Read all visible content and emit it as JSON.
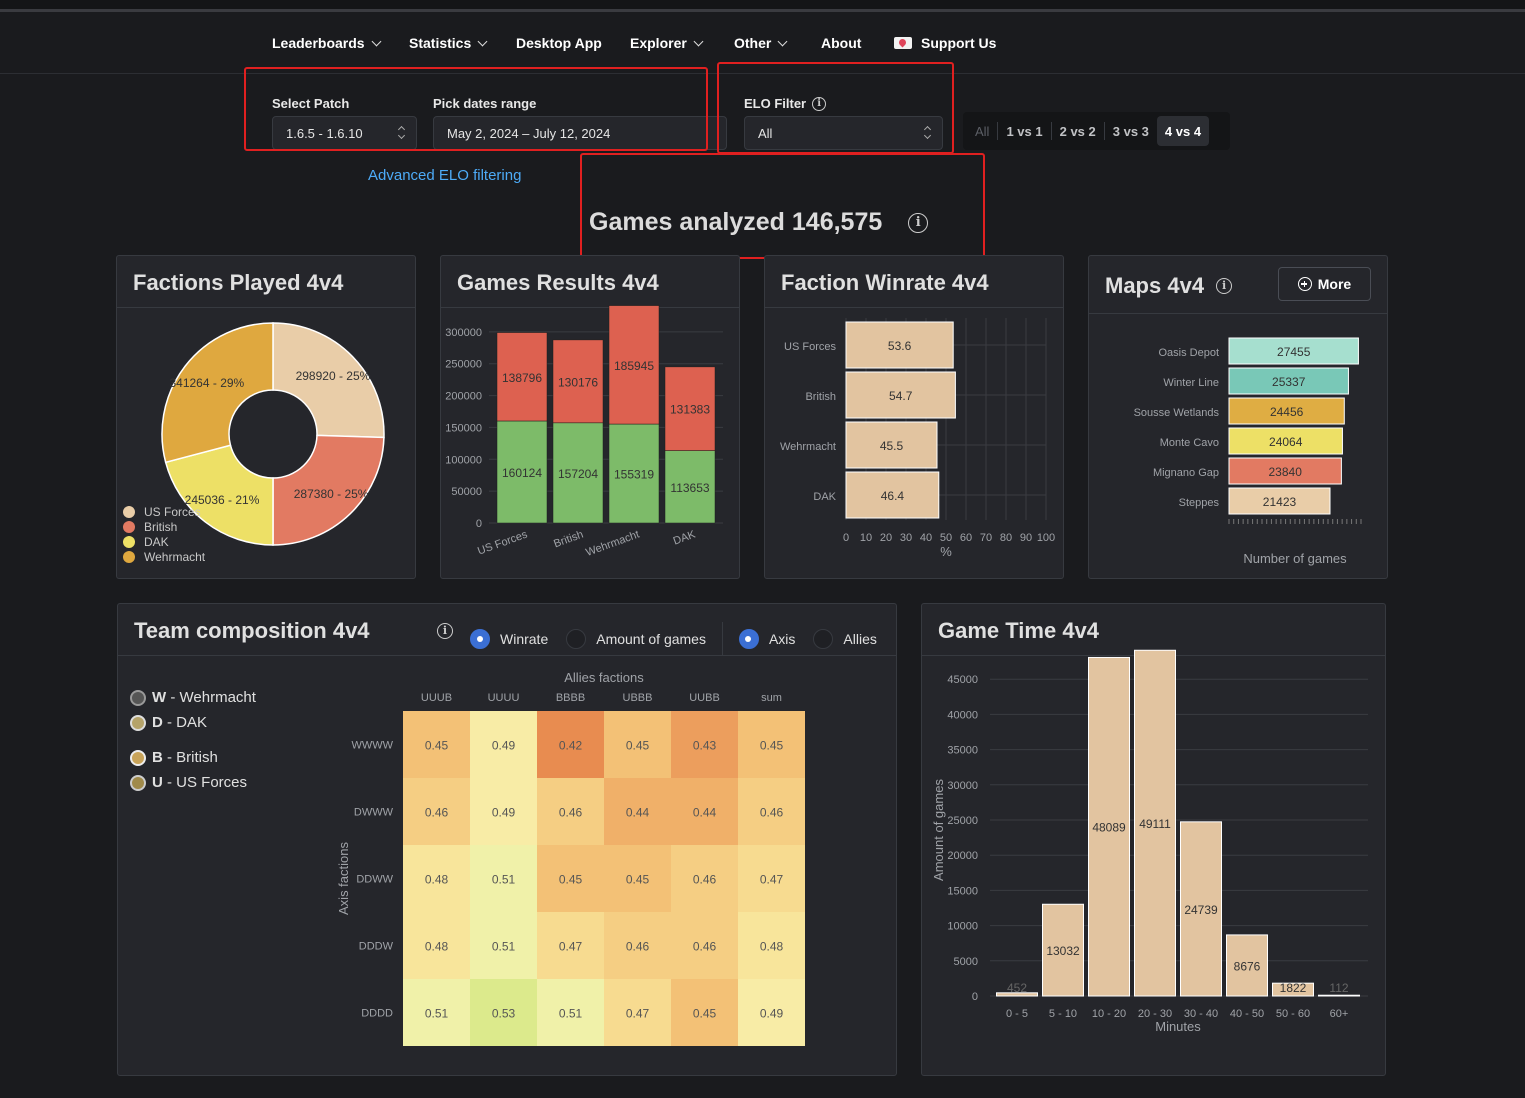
{
  "nav": {
    "items": [
      {
        "label": "Leaderboards",
        "dropdown": true
      },
      {
        "label": "Statistics",
        "dropdown": true
      },
      {
        "label": "Desktop App",
        "dropdown": false
      },
      {
        "label": "Explorer",
        "dropdown": true
      },
      {
        "label": "Other",
        "dropdown": true
      },
      {
        "label": "About",
        "dropdown": false
      }
    ],
    "support_label": "Support Us"
  },
  "filters": {
    "patch_label": "Select Patch",
    "patch_value": "1.6.5 - 1.6.10",
    "dates_label": "Pick dates range",
    "dates_value": "May 2, 2024 – July 12, 2024",
    "elo_label": "ELO Filter",
    "elo_value": "All",
    "advanced_link": "Advanced ELO filtering",
    "modes": [
      "All",
      "1 vs 1",
      "2 vs 2",
      "3 vs 3",
      "4 vs 4"
    ],
    "active_mode": "4 vs 4"
  },
  "games_analyzed": "Games analyzed 146,575",
  "cards": {
    "factions_played": "Factions Played 4v4",
    "games_results": "Games Results 4v4",
    "faction_winrate": "Faction Winrate 4v4",
    "maps": "Maps 4v4",
    "maps_more": "More",
    "team_comp": "Team composition 4v4",
    "game_time": "Game Time 4v4"
  },
  "team_comp_controls": {
    "winrate": "Winrate",
    "amount": "Amount of games",
    "axis": "Axis",
    "allies": "Allies"
  },
  "faction_legend": [
    {
      "code": "W",
      "name": " - Wehrmacht"
    },
    {
      "code": "D",
      "name": " - DAK"
    },
    {
      "code": "B",
      "name": " - British"
    },
    {
      "code": "U",
      "name": " - US Forces"
    }
  ],
  "colors": {
    "accent": "#3b6fd4",
    "win": "#7dbb69",
    "loss": "#dd6150",
    "bar": "#e2c4a0",
    "link": "#4dabf7"
  },
  "chart_data": [
    {
      "type": "pie",
      "title": "Factions Played 4v4",
      "labels": [
        "US Forces",
        "British",
        "DAK",
        "Wehrmacht"
      ],
      "values": [
        298920,
        287380,
        245036,
        341264
      ],
      "percent_labels": [
        "298920 - 25%",
        "287380 - 25%",
        "245036 - 21%",
        "341264 - 29%"
      ],
      "colors": [
        "#e9cda8",
        "#e27a62",
        "#ede066",
        "#dfa83f"
      ],
      "legend": "bottom-left"
    },
    {
      "type": "bar",
      "title": "Games Results 4v4",
      "categories": [
        "US Forces",
        "British",
        "Wehrmacht",
        "DAK"
      ],
      "series": [
        {
          "name": "wins",
          "values": [
            160124,
            157204,
            155319,
            113653
          ],
          "color": "#7dbb69"
        },
        {
          "name": "losses",
          "values": [
            138796,
            130176,
            185945,
            131383
          ],
          "color": "#dd6150"
        }
      ],
      "stacked": true,
      "yticks": [
        "0",
        "50000",
        "100000",
        "150000",
        "200000",
        "250000",
        "300000"
      ],
      "ylim": [
        0,
        350000
      ]
    },
    {
      "type": "bar",
      "orientation": "horizontal",
      "title": "Faction Winrate 4v4",
      "categories": [
        "US Forces",
        "British",
        "Wehrmacht",
        "DAK"
      ],
      "values": [
        53.6,
        54.7,
        45.5,
        46.4
      ],
      "xlabel": "%",
      "xticks": [
        "0",
        "10",
        "20",
        "30",
        "40",
        "50",
        "60",
        "70",
        "80",
        "90",
        "100"
      ],
      "xlim": [
        0,
        100
      ]
    },
    {
      "type": "bar",
      "orientation": "horizontal",
      "title": "Maps 4v4",
      "categories": [
        "Oasis Depot",
        "Winter Line",
        "Sousse Wetlands",
        "Monte Cavo",
        "Mignano Gap",
        "Steppes"
      ],
      "values": [
        27455,
        25337,
        24456,
        24064,
        23840,
        21423
      ],
      "colors": [
        "#a6dfcf",
        "#79c8b7",
        "#dfad43",
        "#ede066",
        "#e27a62",
        "#e9cda8"
      ],
      "xlabel": "Number of games",
      "xlim": [
        0,
        28000
      ]
    },
    {
      "type": "heatmap",
      "title": "Team composition 4v4",
      "xlabel": "Allies factions",
      "ylabel": "Axis factions",
      "x": [
        "UUUB",
        "UUUU",
        "BBBB",
        "UBBB",
        "UUBB",
        "sum"
      ],
      "y": [
        "WWWW",
        "DWWW",
        "DDWW",
        "DDDW",
        "DDDD"
      ],
      "values": [
        [
          "0.45",
          "0.49",
          "0.42",
          "0.45",
          "0.43",
          "0.45"
        ],
        [
          "0.46",
          "0.49",
          "0.46",
          "0.44",
          "0.44",
          "0.46"
        ],
        [
          "0.48",
          "0.51",
          "0.45",
          "0.45",
          "0.46",
          "0.47"
        ],
        [
          "0.48",
          "0.51",
          "0.47",
          "0.46",
          "0.46",
          "0.48"
        ],
        [
          "0.51",
          "0.53",
          "0.51",
          "0.47",
          "0.45",
          "0.49"
        ]
      ]
    },
    {
      "type": "bar",
      "title": "Game Time 4v4",
      "categories": [
        "0 - 5",
        "5 - 10",
        "10 - 20",
        "20 - 30",
        "30 - 40",
        "40 - 50",
        "50 - 60",
        "60+"
      ],
      "values": [
        452,
        13032,
        48089,
        49111,
        24739,
        8676,
        1822,
        112
      ],
      "labels": [
        "452",
        "13032",
        "48089",
        "49111",
        "24739",
        "8676",
        "1822",
        "112"
      ],
      "xlabel": "Minutes",
      "ylabel": "Amount of games",
      "yticks": [
        "0",
        "5000",
        "10000",
        "15000",
        "20000",
        "25000",
        "30000",
        "35000",
        "40000",
        "45000"
      ],
      "ylim": [
        0,
        50000
      ]
    }
  ]
}
